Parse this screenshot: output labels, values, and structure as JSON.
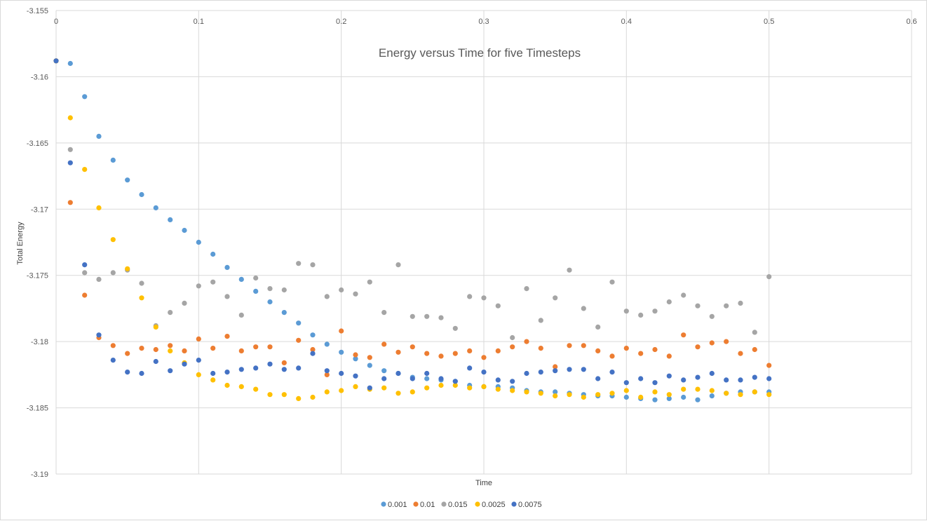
{
  "chart_data": {
    "type": "scatter",
    "title": "Energy versus Time for five Timesteps",
    "xlabel": "Time",
    "ylabel": "Total Energy",
    "xlim": [
      0,
      0.6
    ],
    "ylim": [
      -3.19,
      -3.155
    ],
    "xticks": [
      "0",
      "0.1",
      "0.2",
      "0.3",
      "0.4",
      "0.5",
      "0.6"
    ],
    "yticks": [
      "-3.155",
      "-3.16",
      "-3.165",
      "-3.17",
      "-3.175",
      "-3.18",
      "-3.185",
      "-3.19"
    ],
    "x_axis_position": "top",
    "grid": true,
    "legend_position": "bottom",
    "x": [
      0,
      0.01,
      0.02,
      0.03,
      0.04,
      0.05,
      0.06,
      0.07,
      0.08,
      0.09,
      0.1,
      0.11,
      0.12,
      0.13,
      0.14,
      0.15,
      0.16,
      0.17,
      0.18,
      0.19,
      0.2,
      0.21,
      0.22,
      0.23,
      0.24,
      0.25,
      0.26,
      0.27,
      0.28,
      0.29,
      0.3,
      0.31,
      0.32,
      0.33,
      0.34,
      0.35,
      0.36,
      0.37,
      0.38,
      0.39,
      0.4,
      0.41,
      0.42,
      0.43,
      0.44,
      0.45,
      0.46,
      0.47,
      0.48,
      0.49,
      0.5
    ],
    "series": [
      {
        "name": "0.001",
        "color": "#5B9BD5",
        "values": [
          -3.1588,
          -3.159,
          -3.1615,
          -3.1645,
          -3.1663,
          -3.1678,
          -3.1689,
          -3.1699,
          -3.1708,
          -3.1716,
          -3.1725,
          -3.1734,
          -3.1744,
          -3.1753,
          -3.1762,
          -3.177,
          -3.1778,
          -3.1786,
          -3.1795,
          -3.1802,
          -3.1808,
          -3.1813,
          -3.1818,
          -3.1822,
          -3.1824,
          -3.1827,
          -3.1828,
          -3.1829,
          -3.183,
          -3.1833,
          -3.1834,
          -3.1834,
          -3.1835,
          -3.1837,
          -3.1838,
          -3.1838,
          -3.1839,
          -3.184,
          -3.1841,
          -3.1841,
          -3.1842,
          -3.1843,
          -3.1844,
          -3.1843,
          -3.1842,
          -3.1844,
          -3.1841,
          -3.1839,
          -3.1838,
          -3.1838,
          -3.1838
        ]
      },
      {
        "name": "0.01",
        "color": "#ED7D31",
        "values": [
          -3.1588,
          -3.1695,
          -3.1765,
          -3.1797,
          -3.1803,
          -3.1809,
          -3.1805,
          -3.1806,
          -3.1803,
          -3.1807,
          -3.1798,
          -3.1805,
          -3.1796,
          -3.1807,
          -3.1804,
          -3.1804,
          -3.1816,
          -3.1799,
          -3.1806,
          -3.1825,
          -3.1792,
          -3.181,
          -3.1812,
          -3.1802,
          -3.1808,
          -3.1804,
          -3.1809,
          -3.1811,
          -3.1809,
          -3.1807,
          -3.1812,
          -3.1807,
          -3.1804,
          -3.18,
          -3.1805,
          -3.1819,
          -3.1803,
          -3.1803,
          -3.1807,
          -3.1811,
          -3.1805,
          -3.1809,
          -3.1806,
          -3.1811,
          -3.1795,
          -3.1804,
          -3.1801,
          -3.18,
          -3.1809,
          -3.1806,
          -3.1818
        ]
      },
      {
        "name": "0.015",
        "color": "#A5A5A5",
        "values": [
          -3.1588,
          -3.1655,
          -3.1748,
          -3.1753,
          -3.1748,
          -3.1746,
          -3.1756,
          -3.1788,
          -3.1778,
          -3.1771,
          -3.1758,
          -3.1755,
          -3.1766,
          -3.178,
          -3.1752,
          -3.176,
          -3.1761,
          -3.1741,
          -3.1742,
          -3.1766,
          -3.1761,
          -3.1764,
          -3.1755,
          -3.1778,
          -3.1742,
          -3.1781,
          -3.1781,
          -3.1782,
          -3.179,
          -3.1766,
          -3.1767,
          -3.1773,
          -3.1797,
          -3.176,
          -3.1784,
          -3.1767,
          -3.1746,
          -3.1775,
          -3.1789,
          -3.1755,
          -3.1777,
          -3.178,
          -3.1777,
          -3.177,
          -3.1765,
          -3.1773,
          -3.1781,
          -3.1773,
          -3.1771,
          -3.1793,
          -3.1751
        ]
      },
      {
        "name": "0.0025",
        "color": "#FFC000",
        "values": [
          -3.1588,
          -3.1631,
          -3.167,
          -3.1699,
          -3.1723,
          -3.1745,
          -3.1767,
          -3.1789,
          -3.1807,
          -3.1816,
          -3.1825,
          -3.1829,
          -3.1833,
          -3.1834,
          -3.1836,
          -3.184,
          -3.184,
          -3.1843,
          -3.1842,
          -3.1838,
          -3.1837,
          -3.1834,
          -3.1836,
          -3.1835,
          -3.1839,
          -3.1838,
          -3.1835,
          -3.1833,
          -3.1833,
          -3.1835,
          -3.1834,
          -3.1836,
          -3.1837,
          -3.1838,
          -3.1839,
          -3.1841,
          -3.184,
          -3.1842,
          -3.184,
          -3.1839,
          -3.1837,
          -3.1842,
          -3.1838,
          -3.184,
          -3.1836,
          -3.1836,
          -3.1837,
          -3.1839,
          -3.184,
          -3.1838,
          -3.184
        ]
      },
      {
        "name": "0.0075",
        "color": "#4472C4",
        "values": [
          -3.1588,
          -3.1665,
          -3.1742,
          -3.1795,
          -3.1814,
          -3.1823,
          -3.1824,
          -3.1815,
          -3.1822,
          -3.1817,
          -3.1814,
          -3.1824,
          -3.1823,
          -3.1821,
          -3.182,
          -3.1817,
          -3.1821,
          -3.182,
          -3.1809,
          -3.1822,
          -3.1824,
          -3.1826,
          -3.1835,
          -3.1828,
          -3.1824,
          -3.1828,
          -3.1824,
          -3.1828,
          -3.183,
          -3.182,
          -3.1823,
          -3.1829,
          -3.183,
          -3.1824,
          -3.1823,
          -3.1822,
          -3.1821,
          -3.1821,
          -3.1828,
          -3.1823,
          -3.1831,
          -3.1828,
          -3.1831,
          -3.1826,
          -3.1829,
          -3.1827,
          -3.1824,
          -3.1829,
          -3.1829,
          -3.1827,
          -3.1828
        ]
      }
    ]
  }
}
